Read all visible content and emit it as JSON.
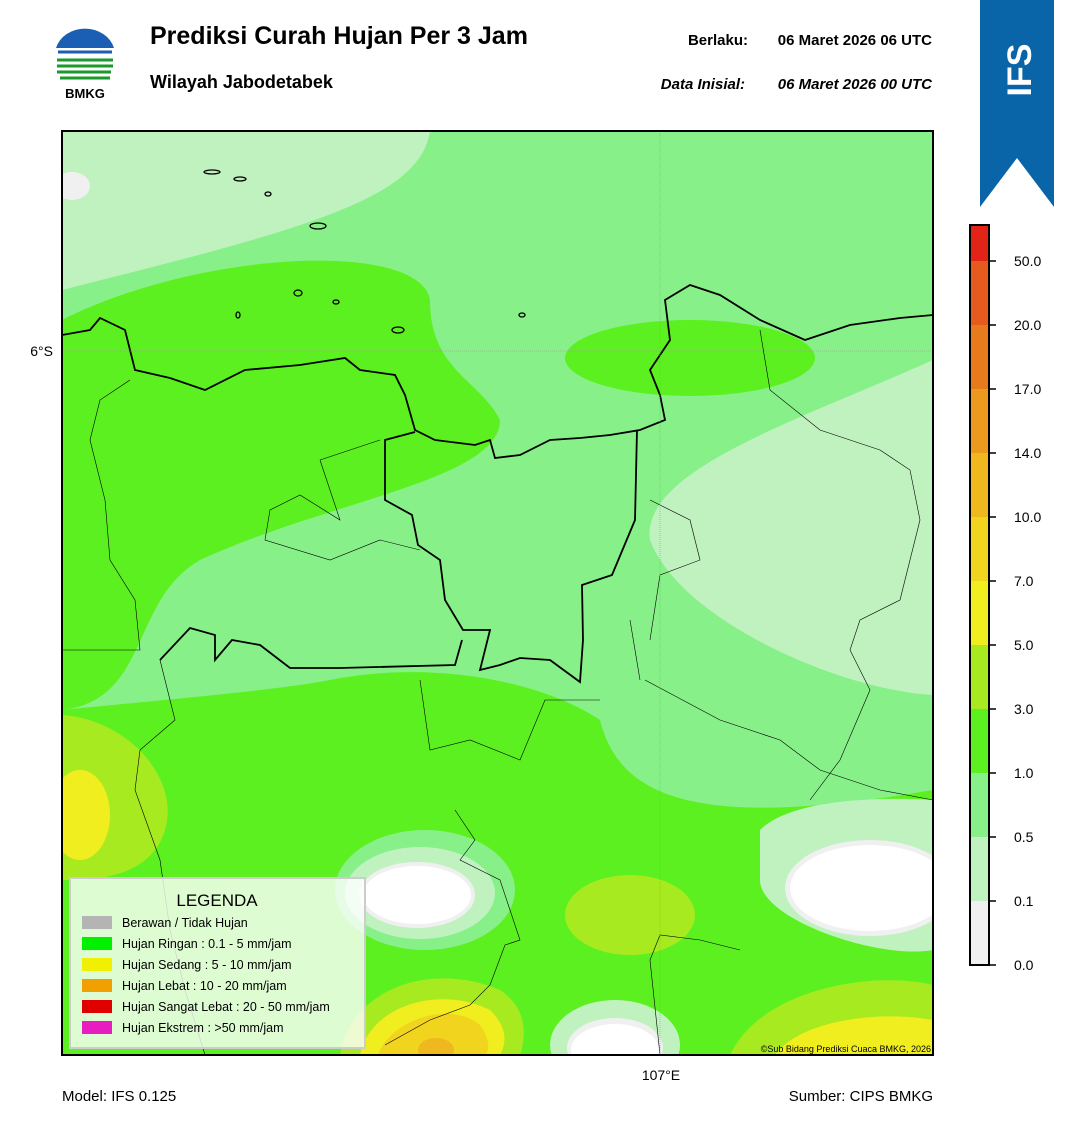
{
  "header": {
    "logo_text": "BMKG",
    "title": "Prediksi Curah Hujan Per 3 Jam",
    "subtitle": "Wilayah Jabodetabek",
    "valid_label": "Berlaku:",
    "valid_time": "06 Maret 2026 06 UTC",
    "init_label": "Data Inisial:",
    "init_time": "06 Maret 2026 00 UTC",
    "badge": "IFS"
  },
  "map": {
    "lat_label": "6°S",
    "lon_label": "107°E",
    "credit": "©Sub Bidang Prediksi Cuaca BMKG, 2026"
  },
  "legend": {
    "title": "LEGENDA",
    "items": [
      {
        "label": "Berawan / Tidak Hujan",
        "color": "#b4b4b4"
      },
      {
        "label": "Hujan Ringan : 0.1 - 5 mm/jam",
        "color": "#00f000"
      },
      {
        "label": "Hujan Sedang : 5 - 10 mm/jam",
        "color": "#f0f000"
      },
      {
        "label": "Hujan Lebat : 10 - 20 mm/jam",
        "color": "#f0a000"
      },
      {
        "label": "Hujan Sangat Lebat : 20 - 50 mm/jam",
        "color": "#e00000"
      },
      {
        "label": "Hujan Ekstrem : >50 mm/jam",
        "color": "#e81cc0"
      }
    ]
  },
  "colorbar": {
    "ticks": [
      "0.0",
      "0.1",
      "0.5",
      "1.0",
      "3.0",
      "5.0",
      "7.0",
      "10.0",
      "14.0",
      "17.0",
      "20.0",
      "50.0"
    ],
    "colors": [
      "#f0f0f0",
      "#c0f2c0",
      "#88f088",
      "#5cf020",
      "#a8ea20",
      "#f0ee1e",
      "#f0d41e",
      "#eeb81e",
      "#ec9a1e",
      "#e87a1e",
      "#e65a1e",
      "#e22418",
      "#e020c0"
    ]
  },
  "footer": {
    "model": "Model: IFS 0.125",
    "source": "Sumber: CIPS BMKG"
  }
}
